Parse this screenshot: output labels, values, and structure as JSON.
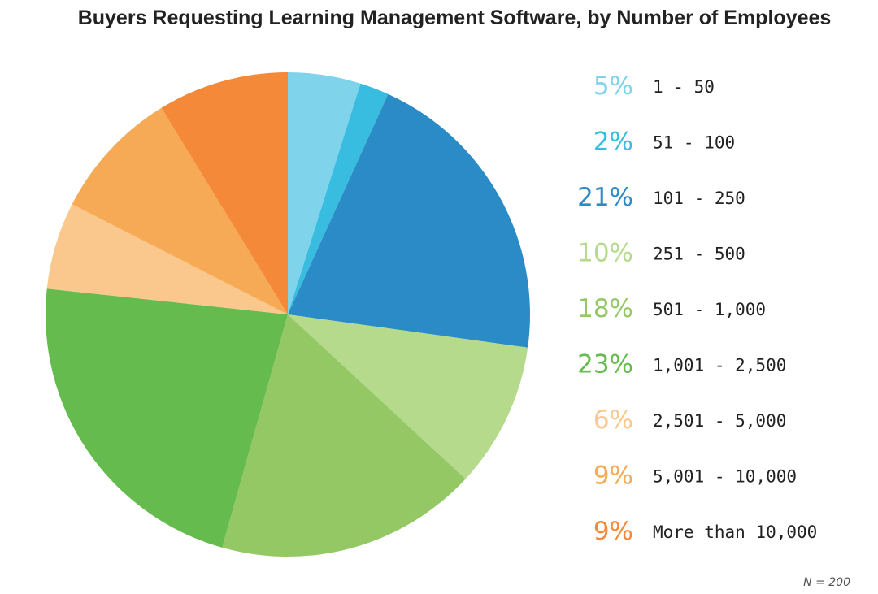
{
  "chart_data": {
    "type": "pie",
    "title": "Buyers Requesting Learning Management Software, by Number of Employees",
    "categories": [
      "1 - 50",
      "51 - 100",
      "101 - 250",
      "251 - 500",
      "501 - 1,000",
      "1,001 - 2,500",
      "2,501 - 5,000",
      "5,001 - 10,000",
      "More than 10,000"
    ],
    "values": [
      5,
      2,
      21,
      10,
      18,
      23,
      6,
      9,
      9
    ],
    "value_labels": [
      "5%",
      "2%",
      "21%",
      "10%",
      "18%",
      "23%",
      "6%",
      "9%",
      "9%"
    ],
    "colors": [
      "#7FD3EB",
      "#38BDE1",
      "#2B8BC6",
      "#B5DA8C",
      "#93C865",
      "#66BB4E",
      "#FAC88C",
      "#F7AA55",
      "#F5893A"
    ],
    "legend_placement": "right",
    "note": "N = 200"
  }
}
